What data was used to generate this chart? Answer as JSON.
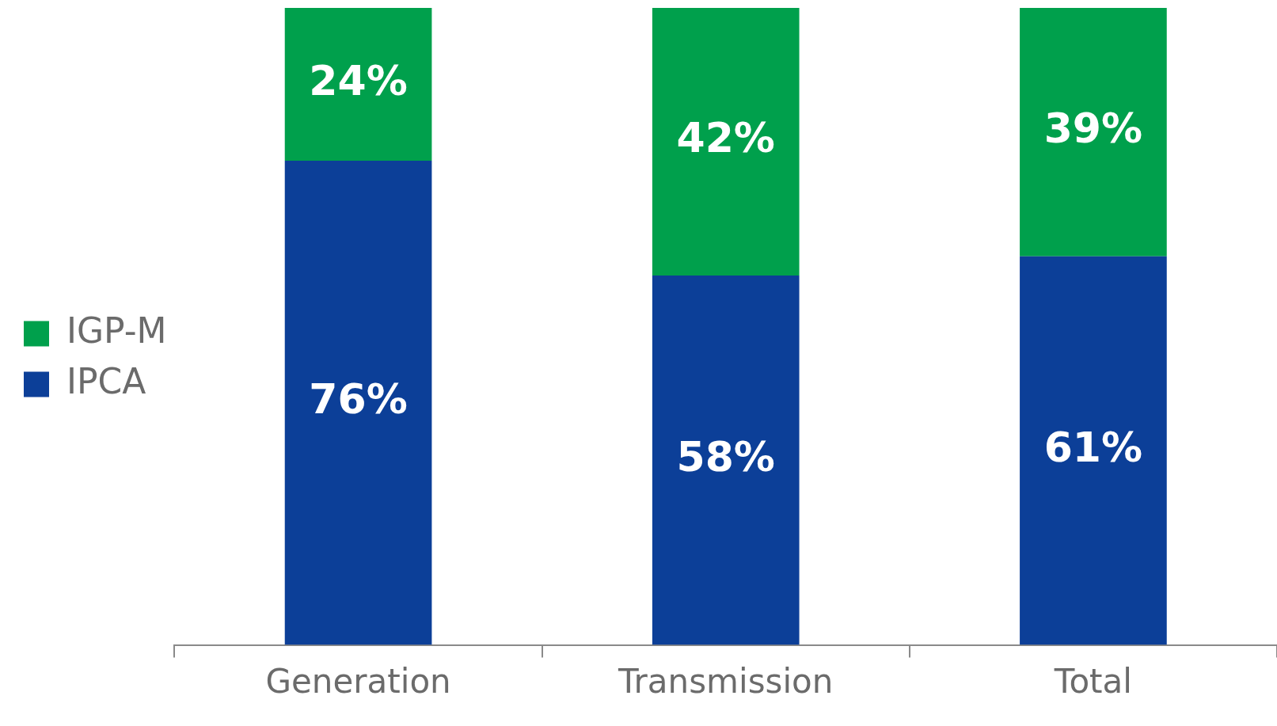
{
  "chart_data": {
    "type": "bar",
    "stacked": true,
    "legend": "left",
    "grid": false,
    "categories": [
      "Generation",
      "Transmission",
      "Total"
    ],
    "series": [
      {
        "name": "IPCA",
        "color": "#0c3f98",
        "values": [
          76,
          58,
          61
        ],
        "value_labels": [
          "76%",
          "58%",
          "61%"
        ]
      },
      {
        "name": "IGP-M",
        "color": "#00a04c",
        "values": [
          24,
          42,
          39
        ],
        "value_labels": [
          "24%",
          "42%",
          "39%"
        ]
      }
    ]
  }
}
